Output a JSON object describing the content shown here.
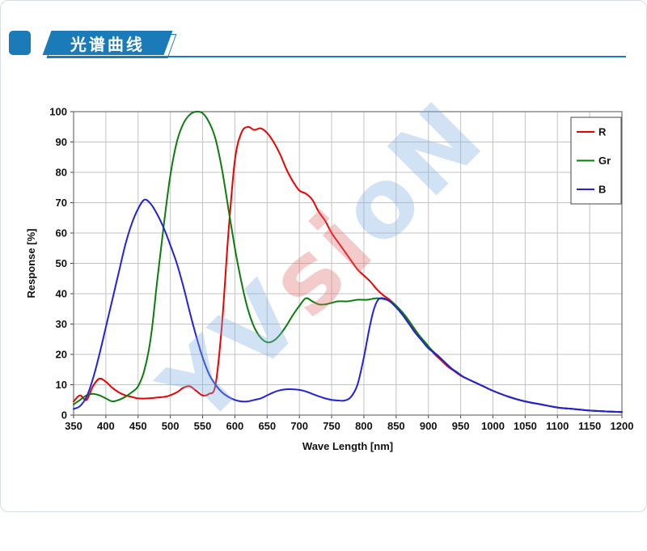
{
  "header": {
    "title": "光谱曲线",
    "accent_color": "#1b7ab8"
  },
  "watermark": {
    "text": "YVsioN",
    "letters": [
      {
        "ch": "Y",
        "color": "#7fb0e2"
      },
      {
        "ch": "V",
        "color": "#7fb0e2"
      },
      {
        "ch": "s",
        "color": "#df7070"
      },
      {
        "ch": "i",
        "color": "#df7070"
      },
      {
        "ch": "o",
        "color": "#7fb0e2"
      },
      {
        "ch": "N",
        "color": "#7fb0e2"
      }
    ]
  },
  "chart_data": {
    "type": "line",
    "title": "",
    "xlabel": "Wave Length [nm]",
    "ylabel": "Response [%]",
    "xlim": [
      350,
      1200
    ],
    "ylim": [
      0,
      100
    ],
    "x_tick_step": 50,
    "y_tick_step": 10,
    "grid": true,
    "legend_position": "top-right",
    "series": [
      {
        "name": "R",
        "color": "#ee0000",
        "points": [
          [
            350,
            4.5
          ],
          [
            360,
            6.5
          ],
          [
            370,
            5
          ],
          [
            380,
            9.5
          ],
          [
            390,
            12
          ],
          [
            400,
            11
          ],
          [
            410,
            9
          ],
          [
            420,
            7.5
          ],
          [
            430,
            6.5
          ],
          [
            440,
            6
          ],
          [
            450,
            5.5
          ],
          [
            465,
            5.5
          ],
          [
            480,
            5.8
          ],
          [
            495,
            6.2
          ],
          [
            510,
            7.5
          ],
          [
            520,
            9
          ],
          [
            530,
            9.5
          ],
          [
            540,
            8
          ],
          [
            550,
            6.5
          ],
          [
            560,
            7
          ],
          [
            570,
            10
          ],
          [
            580,
            30
          ],
          [
            590,
            60
          ],
          [
            600,
            84
          ],
          [
            610,
            93
          ],
          [
            620,
            95
          ],
          [
            630,
            94
          ],
          [
            640,
            94.5
          ],
          [
            650,
            93
          ],
          [
            660,
            90
          ],
          [
            670,
            86
          ],
          [
            680,
            81
          ],
          [
            690,
            77
          ],
          [
            700,
            74
          ],
          [
            710,
            73
          ],
          [
            720,
            71
          ],
          [
            730,
            67
          ],
          [
            740,
            64
          ],
          [
            750,
            60
          ],
          [
            760,
            57
          ],
          [
            770,
            54
          ],
          [
            780,
            51
          ],
          [
            790,
            48
          ],
          [
            800,
            46
          ],
          [
            810,
            44
          ],
          [
            820,
            41.5
          ],
          [
            830,
            39.5
          ],
          [
            840,
            38
          ],
          [
            850,
            36
          ],
          [
            860,
            33.5
          ],
          [
            870,
            30.5
          ],
          [
            880,
            27.5
          ],
          [
            890,
            25
          ],
          [
            900,
            22.5
          ],
          [
            910,
            20
          ],
          [
            920,
            18
          ],
          [
            930,
            16
          ],
          [
            940,
            14.5
          ],
          [
            950,
            13
          ],
          [
            960,
            12
          ],
          [
            970,
            11
          ],
          [
            980,
            10
          ],
          [
            990,
            9
          ],
          [
            1000,
            8
          ],
          [
            1025,
            6
          ],
          [
            1050,
            4.5
          ],
          [
            1075,
            3.5
          ],
          [
            1100,
            2.5
          ],
          [
            1125,
            2
          ],
          [
            1150,
            1.5
          ],
          [
            1175,
            1.2
          ],
          [
            1200,
            1
          ]
        ]
      },
      {
        "name": "Gr",
        "color": "#0b7d0b",
        "points": [
          [
            350,
            3.5
          ],
          [
            360,
            5
          ],
          [
            370,
            6.5
          ],
          [
            380,
            7
          ],
          [
            390,
            6.5
          ],
          [
            400,
            5.5
          ],
          [
            410,
            4.5
          ],
          [
            420,
            5
          ],
          [
            430,
            6
          ],
          [
            440,
            7.5
          ],
          [
            450,
            9.5
          ],
          [
            460,
            15
          ],
          [
            470,
            26
          ],
          [
            480,
            45
          ],
          [
            490,
            63
          ],
          [
            500,
            79
          ],
          [
            510,
            90
          ],
          [
            520,
            96
          ],
          [
            530,
            99
          ],
          [
            540,
            100
          ],
          [
            550,
            99.5
          ],
          [
            560,
            96.5
          ],
          [
            570,
            91
          ],
          [
            580,
            81
          ],
          [
            590,
            68
          ],
          [
            600,
            55
          ],
          [
            610,
            44
          ],
          [
            620,
            35
          ],
          [
            630,
            29
          ],
          [
            640,
            25.5
          ],
          [
            650,
            24
          ],
          [
            660,
            24.5
          ],
          [
            670,
            26.5
          ],
          [
            680,
            29.5
          ],
          [
            690,
            33
          ],
          [
            700,
            36
          ],
          [
            710,
            38.5
          ],
          [
            720,
            37.5
          ],
          [
            730,
            36.5
          ],
          [
            740,
            36.5
          ],
          [
            750,
            37
          ],
          [
            760,
            37.5
          ],
          [
            775,
            37.5
          ],
          [
            790,
            38
          ],
          [
            805,
            38
          ],
          [
            820,
            38.5
          ],
          [
            835,
            38
          ],
          [
            845,
            37
          ],
          [
            855,
            35
          ],
          [
            865,
            32.5
          ],
          [
            875,
            29.5
          ],
          [
            885,
            26.5
          ],
          [
            895,
            24
          ],
          [
            905,
            21.5
          ],
          [
            915,
            19.5
          ],
          [
            925,
            17.5
          ],
          [
            935,
            15.5
          ],
          [
            945,
            14
          ],
          [
            955,
            12.5
          ],
          [
            970,
            11
          ],
          [
            985,
            9.5
          ],
          [
            1000,
            8
          ],
          [
            1025,
            6
          ],
          [
            1050,
            4.5
          ],
          [
            1075,
            3.5
          ],
          [
            1100,
            2.5
          ],
          [
            1125,
            2
          ],
          [
            1150,
            1.5
          ],
          [
            1175,
            1.2
          ],
          [
            1200,
            1
          ]
        ]
      },
      {
        "name": "B",
        "color": "#2222dd",
        "points": [
          [
            350,
            2
          ],
          [
            360,
            3
          ],
          [
            370,
            6
          ],
          [
            380,
            12
          ],
          [
            390,
            20
          ],
          [
            400,
            29
          ],
          [
            410,
            38
          ],
          [
            420,
            47
          ],
          [
            430,
            56
          ],
          [
            440,
            63
          ],
          [
            450,
            68
          ],
          [
            460,
            71
          ],
          [
            470,
            69.5
          ],
          [
            480,
            66
          ],
          [
            490,
            61.5
          ],
          [
            500,
            56
          ],
          [
            510,
            50
          ],
          [
            520,
            42.5
          ],
          [
            530,
            34
          ],
          [
            540,
            26
          ],
          [
            550,
            19
          ],
          [
            560,
            13.5
          ],
          [
            570,
            10
          ],
          [
            580,
            7.5
          ],
          [
            590,
            6
          ],
          [
            600,
            5
          ],
          [
            610,
            4.5
          ],
          [
            620,
            4.5
          ],
          [
            630,
            5
          ],
          [
            640,
            5.5
          ],
          [
            650,
            6.5
          ],
          [
            660,
            7.5
          ],
          [
            670,
            8.2
          ],
          [
            680,
            8.5
          ],
          [
            690,
            8.5
          ],
          [
            700,
            8.3
          ],
          [
            710,
            7.8
          ],
          [
            720,
            7
          ],
          [
            730,
            6.2
          ],
          [
            740,
            5.5
          ],
          [
            750,
            5
          ],
          [
            760,
            4.8
          ],
          [
            770,
            4.8
          ],
          [
            780,
            6
          ],
          [
            790,
            10
          ],
          [
            800,
            19
          ],
          [
            808,
            28
          ],
          [
            815,
            34.5
          ],
          [
            822,
            38
          ],
          [
            830,
            38.5
          ],
          [
            840,
            37.5
          ],
          [
            850,
            35.5
          ],
          [
            860,
            33
          ],
          [
            870,
            30
          ],
          [
            880,
            27
          ],
          [
            890,
            24.5
          ],
          [
            900,
            22
          ],
          [
            915,
            19.5
          ],
          [
            925,
            17.5
          ],
          [
            935,
            15.5
          ],
          [
            945,
            14
          ],
          [
            955,
            12.5
          ],
          [
            970,
            11
          ],
          [
            985,
            9.5
          ],
          [
            1000,
            8
          ],
          [
            1025,
            6
          ],
          [
            1050,
            4.5
          ],
          [
            1075,
            3.5
          ],
          [
            1100,
            2.5
          ],
          [
            1125,
            2
          ],
          [
            1150,
            1.5
          ],
          [
            1175,
            1.2
          ],
          [
            1200,
            1
          ]
        ]
      }
    ]
  }
}
